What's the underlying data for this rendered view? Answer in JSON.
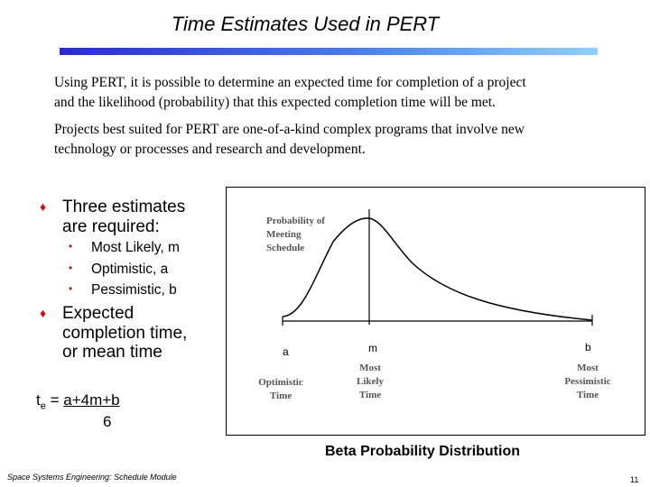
{
  "slide": {
    "title": "Time Estimates Used in PERT",
    "paragraph_1_line_1": "Using PERT, it is possible to determine an expected time for completion of a project",
    "paragraph_1_line_2": "and the likelihood (probability) that this expected completion time will be met.",
    "paragraph_2_line_1": "Projects best suited for PERT are one-of-a-kind complex programs that involve new",
    "paragraph_2_line_2": "technology or processes and research and development."
  },
  "bullets": {
    "estimates_line_1": "Three estimates",
    "estimates_line_2": "are required:",
    "sub_items": [
      "Most Likely, m",
      "Optimistic, a",
      "Pessimistic, b"
    ],
    "expected_line_1": "Expected",
    "expected_line_2": "completion time,",
    "expected_line_3": "or mean time"
  },
  "formula": {
    "lhs": "t",
    "subscript": "e",
    "equals": " = ",
    "numerator": "a+4m+b",
    "denominator": "6"
  },
  "figure": {
    "y_label_line_1": "Probability of",
    "y_label_line_2": "Meeting",
    "y_label_line_3": "Schedule",
    "marker_a": "a",
    "marker_m": "m",
    "marker_b": "b",
    "optimistic_line_1": "Optimistic",
    "optimistic_line_2": "Time",
    "most_likely_line_1": "Most",
    "most_likely_line_2": "Likely",
    "most_likely_line_3": "Time",
    "pessimistic_line_1": "Most",
    "pessimistic_line_2": "Pessimistic",
    "pessimistic_line_3": "Time",
    "caption": "Beta Probability Distribution"
  },
  "footer": {
    "text": "Space Systems Engineering: Schedule Module",
    "page_number": "11"
  }
}
